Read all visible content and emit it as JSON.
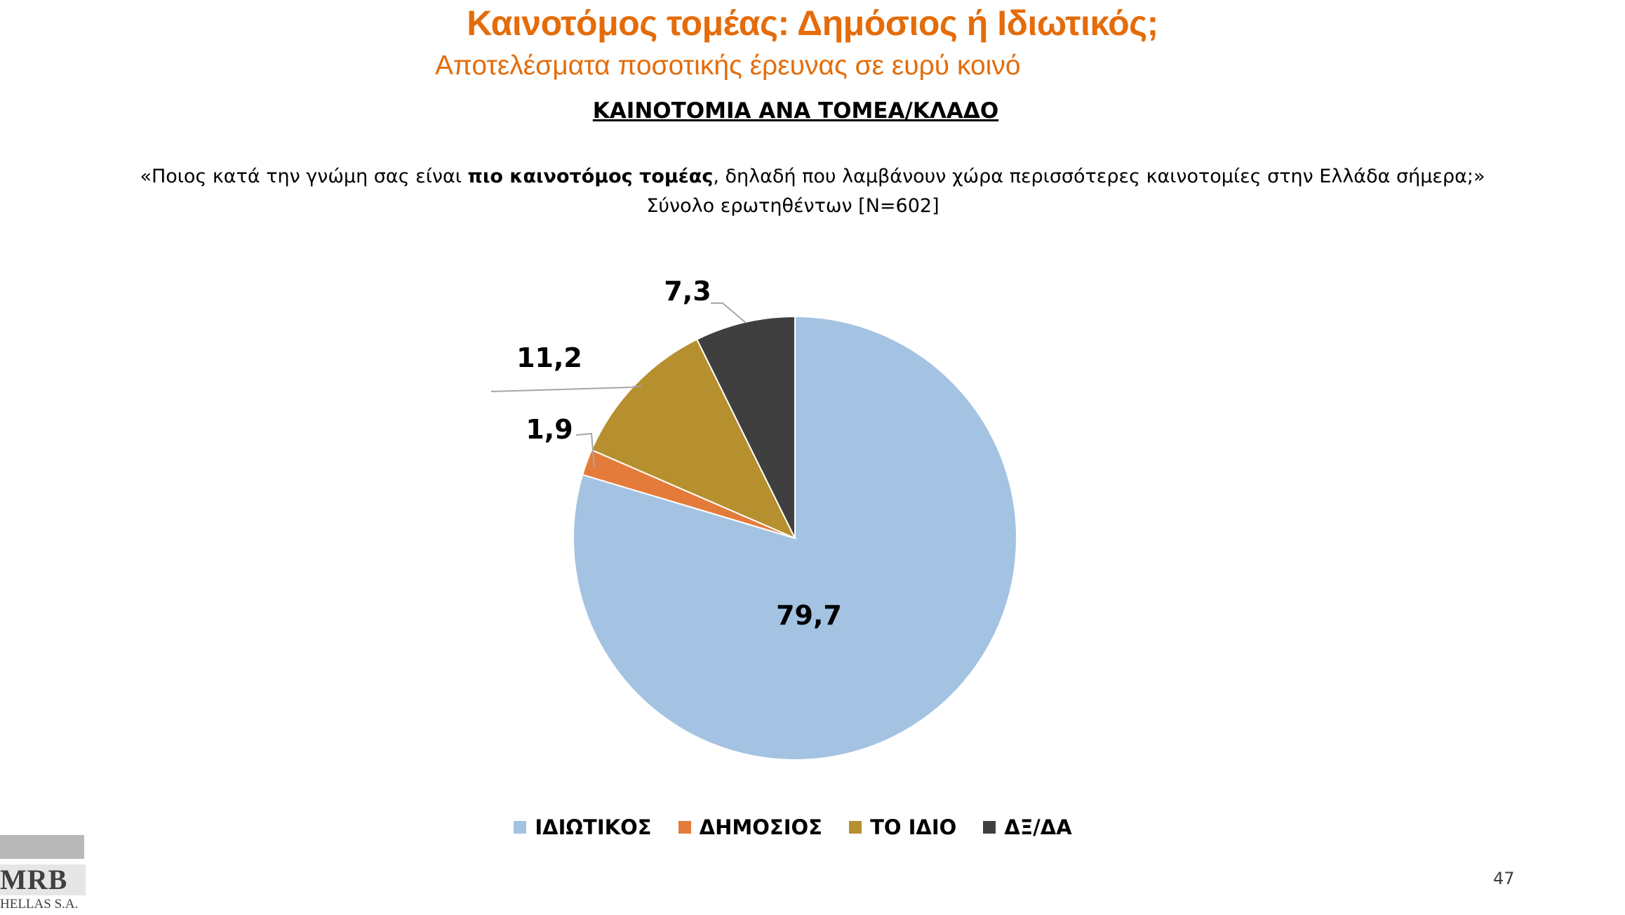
{
  "header": {
    "title": "Καινοτόμος τομέας: Δημόσιος ή Ιδιωτικός;",
    "subtitle": "Αποτελέσματα ποσοτικής έρευνας σε ευρύ κοινό",
    "section_title": "ΚΑΙΝΟΤΟΜΙΑ ΑΝΑ ΤΟΜΕΑ/ΚΛΑΔΟ"
  },
  "question": {
    "part1": "«Ποιος κατά την γνώμη σας είναι ",
    "bold": "πιο καινοτόμος τομέας",
    "part2": ", δηλαδή που λαμβάνουν χώρα περισσότερες καινοτομίες στην Ελλάδα σήμερα;»",
    "base": "Σύνολο ερωτηθέντων [N=602]"
  },
  "chart_data": {
    "type": "pie",
    "start": "12 o'clock",
    "direction": "clockwise",
    "slices": [
      {
        "label": "ΙΔΙΩΤΙΚΟΣ",
        "value": 79.7,
        "display": "79,7",
        "color": "#A4C3E2"
      },
      {
        "label": "ΔΗΜΟΣΙΟΣ",
        "value": 1.9,
        "display": "1,9",
        "color": "#E57B3A"
      },
      {
        "label": "ΤΟ ΙΔΙΟ",
        "value": 11.2,
        "display": "11,2",
        "color": "#B68F2F"
      },
      {
        "label": "ΔΞ/ΔΑ",
        "value": 7.3,
        "display": "7,3",
        "color": "#3F3F3F"
      }
    ],
    "legend_position": "bottom"
  },
  "footer": {
    "page_number": "47",
    "logo_main": "MRB",
    "logo_sub": "HELLAS S.A."
  }
}
